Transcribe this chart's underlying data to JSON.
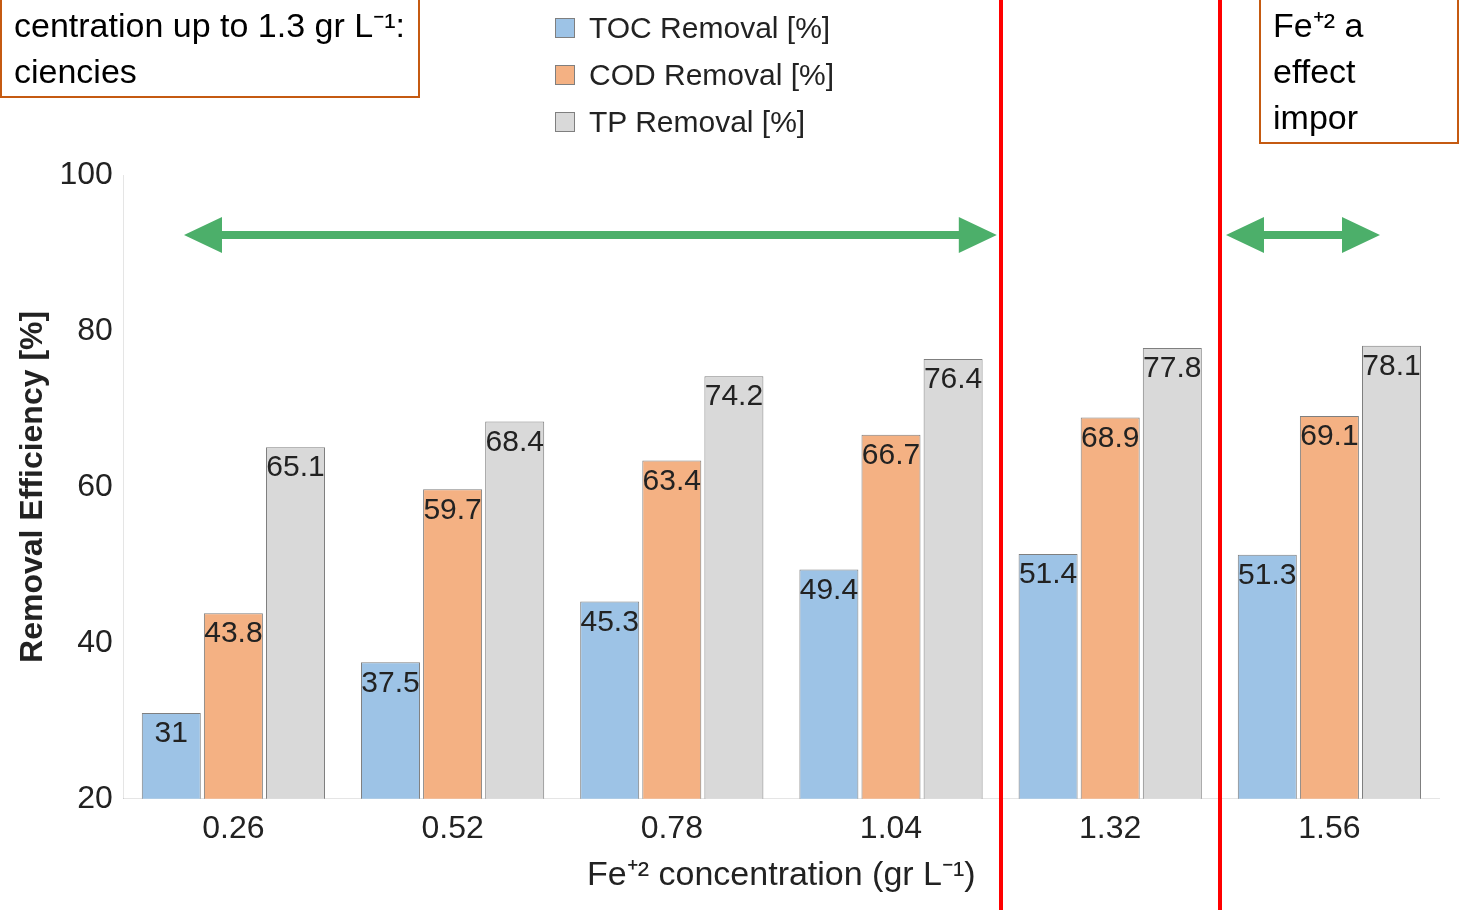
{
  "chart_data": {
    "type": "bar",
    "xlabel": "Fe⁺² concentration (gr L⁻¹)",
    "ylabel": "Removal Efficiency [%]",
    "categories": [
      "0.26",
      "0.52",
      "0.78",
      "1.04",
      "1.32",
      "1.56"
    ],
    "series": [
      {
        "name": "TOC Removal [%]",
        "color": "#9dc3e6",
        "values": [
          31,
          37.5,
          45.3,
          49.4,
          51.4,
          51.3
        ]
      },
      {
        "name": "COD Removal [%]",
        "color": "#f4b183",
        "values": [
          43.8,
          59.7,
          63.4,
          66.7,
          68.9,
          69.1
        ]
      },
      {
        "name": "TP Removal [%]",
        "color": "#d9d9d9",
        "values": [
          65.1,
          68.4,
          74.2,
          76.4,
          77.8,
          78.1
        ]
      }
    ],
    "ylim": [
      20,
      100
    ],
    "yticks": [
      20,
      40,
      60,
      80,
      100
    ],
    "grid": false,
    "legend": "top",
    "data_labels": true,
    "annotations": [
      "centration up to 1.3 gr L⁻¹: ciencies",
      "Fe⁺² a effect impor"
    ]
  }
}
